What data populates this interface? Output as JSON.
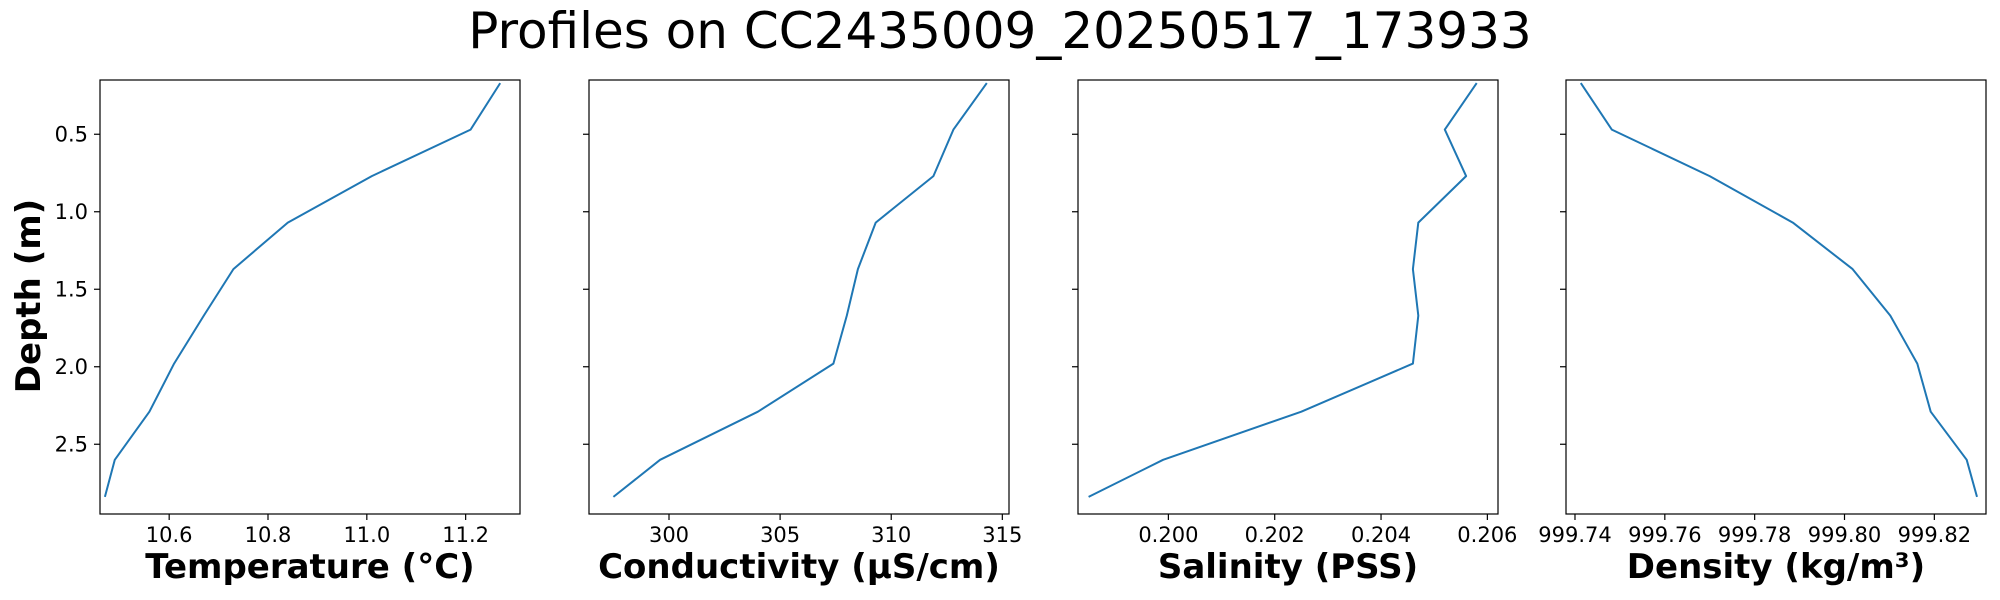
{
  "title": "Profiles on CC2435009_20250517_173933",
  "ylabel": "Depth (m)",
  "colors": {
    "line": "#1f77b4",
    "axes": "#000000",
    "background": "#ffffff"
  },
  "chart_data": [
    {
      "type": "line",
      "xlabel": "Temperature (°C)",
      "ylabel": "Depth (m)",
      "xlim": [
        10.46,
        11.31
      ],
      "ylim": [
        2.95,
        0.15
      ],
      "y_inverted": true,
      "xticks": [
        10.6,
        10.8,
        11.0,
        11.2
      ],
      "xtick_labels": [
        "10.6",
        "10.8",
        "11.0",
        "11.2"
      ],
      "yticks": [
        0.5,
        1.0,
        1.5,
        2.0,
        2.5
      ],
      "ytick_labels": [
        "0.5",
        "1.0",
        "1.5",
        "2.0",
        "2.5"
      ],
      "grid": false,
      "series": [
        {
          "x": [
            11.27,
            11.21,
            11.01,
            10.84,
            10.73,
            10.67,
            10.61,
            10.56,
            10.49,
            10.47
          ],
          "y": [
            0.17,
            0.47,
            0.77,
            1.07,
            1.37,
            1.67,
            1.98,
            2.29,
            2.6,
            2.84
          ]
        }
      ]
    },
    {
      "type": "line",
      "xlabel": "Conductivity (µS/cm)",
      "ylabel": "",
      "xlim": [
        296.4,
        315.3
      ],
      "ylim": [
        2.95,
        0.15
      ],
      "y_inverted": true,
      "xticks": [
        300,
        305,
        310,
        315
      ],
      "xtick_labels": [
        "300",
        "305",
        "310",
        "315"
      ],
      "yticks": [
        0.5,
        1.0,
        1.5,
        2.0,
        2.5
      ],
      "ytick_labels": [],
      "grid": false,
      "series": [
        {
          "x": [
            314.3,
            312.8,
            311.9,
            309.3,
            308.5,
            308.0,
            307.4,
            304.0,
            299.6,
            297.5
          ],
          "y": [
            0.17,
            0.47,
            0.77,
            1.07,
            1.37,
            1.67,
            1.98,
            2.29,
            2.6,
            2.84
          ]
        }
      ]
    },
    {
      "type": "line",
      "xlabel": "Salinity (PSS)",
      "ylabel": "",
      "xlim": [
        0.1983,
        0.2062
      ],
      "ylim": [
        2.95,
        0.15
      ],
      "y_inverted": true,
      "xticks": [
        0.2,
        0.202,
        0.204,
        0.206
      ],
      "xtick_labels": [
        "0.200",
        "0.202",
        "0.204",
        "0.206"
      ],
      "yticks": [
        0.5,
        1.0,
        1.5,
        2.0,
        2.5
      ],
      "ytick_labels": [],
      "grid": false,
      "series": [
        {
          "x": [
            0.2058,
            0.2052,
            0.2056,
            0.2047,
            0.2046,
            0.2047,
            0.2046,
            0.2025,
            0.1999,
            0.1985
          ],
          "y": [
            0.17,
            0.47,
            0.77,
            1.07,
            1.37,
            1.67,
            1.98,
            2.29,
            2.6,
            2.84
          ]
        }
      ]
    },
    {
      "type": "line",
      "xlabel": "Density (kg/m³)",
      "ylabel": "",
      "xlim": [
        999.738,
        999.8315
      ],
      "ylim": [
        2.95,
        0.15
      ],
      "y_inverted": true,
      "xticks": [
        999.74,
        999.76,
        999.78,
        999.8,
        999.82
      ],
      "xtick_labels": [
        "999.74",
        "999.76",
        "999.78",
        "999.80",
        "999.82"
      ],
      "yticks": [
        0.5,
        1.0,
        1.5,
        2.0,
        2.5
      ],
      "ytick_labels": [],
      "grid": false,
      "series": [
        {
          "x": [
            999.7413,
            999.7482,
            999.77,
            999.7885,
            999.8018,
            999.8102,
            999.8162,
            999.8192,
            999.8272,
            999.8295
          ],
          "y": [
            0.17,
            0.47,
            0.77,
            1.07,
            1.37,
            1.67,
            1.98,
            2.29,
            2.6,
            2.84
          ]
        }
      ]
    }
  ]
}
